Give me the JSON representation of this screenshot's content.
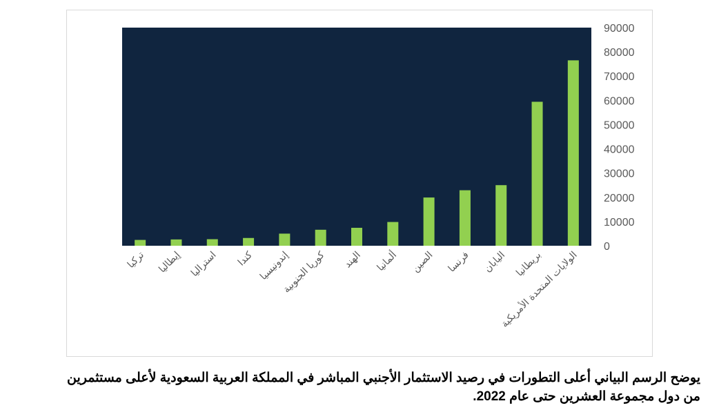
{
  "chart_data": {
    "type": "bar",
    "title": "",
    "xlabel": "",
    "ylabel": "",
    "categories": [
      "تركيا",
      "إيطاليا",
      "استراليا",
      "كندا",
      "إندونيسيا",
      "كوريا الجنوبية",
      "الهند",
      "ألمانيا",
      "الصين",
      "فرنسا",
      "اليابان",
      "بريطانيا",
      "الولايات المتحدة الأمريكية"
    ],
    "values": [
      2400,
      2600,
      2700,
      3200,
      5000,
      6600,
      7400,
      9800,
      19900,
      22900,
      25000,
      59400,
      76500
    ],
    "ylim": [
      0,
      90000
    ],
    "yticks": [
      "0",
      "10000",
      "20000",
      "30000",
      "40000",
      "50000",
      "60000",
      "70000",
      "80000",
      "90000"
    ],
    "y_axis_side": "right",
    "grid": false,
    "legend": "none",
    "colors": {
      "plot_bg": "#10253f",
      "bar": "#92d050",
      "tick_text": "#595959"
    }
  },
  "caption": {
    "line1": "يوضح الرسم البياني أعلى التطورات في رصيد الاستثمار الأجنبي المباشر في المملكة العربية السعودية لأعلى مستثمرين",
    "line2": "من دول مجموعة العشرين حتى عام 2022."
  }
}
